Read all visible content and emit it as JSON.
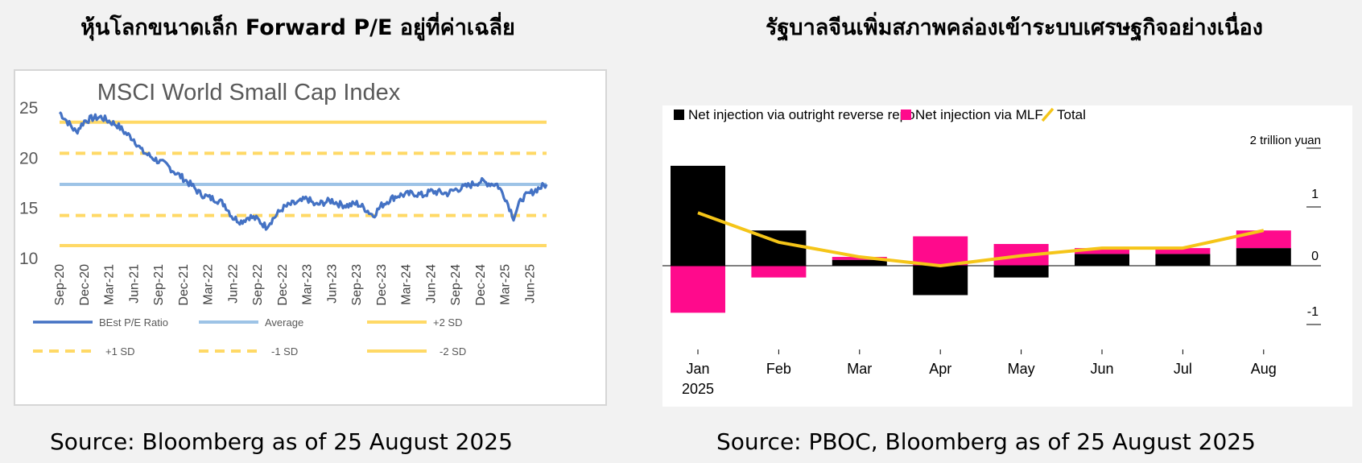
{
  "left": {
    "heading": "หุ้นโลกขนาดเล็ก Forward P/E อยู่ที่ค่าเฉลี่ย",
    "source": "Source: Bloomberg as of 25 August 2025"
  },
  "right": {
    "heading": "รัฐบาลจีนเพิ่มสภาพคล่องเข้าระบบเศรษฐกิจอย่างเนื่อง",
    "source": "Source: PBOC, Bloomberg as of 25 August 2025"
  },
  "chart_data": [
    {
      "type": "line",
      "title": "MSCI World Small Cap Index",
      "ylim": [
        10,
        25
      ],
      "yticks": [
        10,
        15,
        20,
        25
      ],
      "xlim": [
        "Sep-20",
        "Aug-25"
      ],
      "xticks": [
        "Sep-20",
        "Dec-20",
        "Mar-21",
        "Jun-21",
        "Sep-21",
        "Dec-21",
        "Mar-22",
        "Jun-22",
        "Sep-22",
        "Dec-22",
        "Mar-23",
        "Jun-23",
        "Sep-23",
        "Dec-23",
        "Mar-24",
        "Jun-24",
        "Sep-24",
        "Dec-24",
        "Mar-25",
        "Jun-25"
      ],
      "grid": false,
      "legend_position": "bottom",
      "series": [
        {
          "name": "BEst P/E Ratio",
          "color": "#4472c4",
          "style": "solid",
          "x": [
            "Sep-20",
            "Oct-20",
            "Nov-20",
            "Dec-20",
            "Jan-21",
            "Feb-21",
            "Mar-21",
            "Apr-21",
            "May-21",
            "Jun-21",
            "Jul-21",
            "Aug-21",
            "Sep-21",
            "Oct-21",
            "Nov-21",
            "Dec-21",
            "Jan-22",
            "Feb-22",
            "Mar-22",
            "Apr-22",
            "May-22",
            "Jun-22",
            "Jul-22",
            "Aug-22",
            "Sep-22",
            "Oct-22",
            "Nov-22",
            "Dec-22",
            "Jan-23",
            "Feb-23",
            "Mar-23",
            "Apr-23",
            "May-23",
            "Jun-23",
            "Jul-23",
            "Aug-23",
            "Sep-23",
            "Oct-23",
            "Nov-23",
            "Dec-23",
            "Jan-24",
            "Feb-24",
            "Mar-24",
            "Apr-24",
            "May-24",
            "Jun-24",
            "Jul-24",
            "Aug-24",
            "Sep-24",
            "Oct-24",
            "Nov-24",
            "Dec-24",
            "Jan-25",
            "Feb-25",
            "Mar-25",
            "Apr-25",
            "May-25",
            "Jun-25",
            "Jul-25",
            "Aug-25"
          ],
          "values": [
            24.5,
            23.5,
            22.5,
            23.6,
            23.9,
            24.0,
            23.6,
            23.2,
            22.4,
            21.8,
            20.6,
            20.1,
            19.6,
            19.2,
            18.5,
            17.9,
            17.2,
            16.4,
            16.0,
            15.8,
            15.3,
            14.0,
            13.6,
            14.1,
            13.8,
            13.1,
            14.0,
            14.9,
            15.3,
            15.5,
            15.9,
            15.2,
            15.5,
            15.7,
            15.3,
            15.2,
            15.4,
            14.9,
            14.2,
            15.2,
            15.8,
            16.2,
            16.3,
            16.4,
            16.2,
            16.6,
            16.5,
            16.4,
            16.8,
            17.0,
            17.3,
            17.6,
            17.4,
            17.3,
            16.0,
            14.0,
            15.9,
            16.4,
            16.9,
            17.3
          ]
        },
        {
          "name": "Average",
          "color": "#9dc3e6",
          "style": "solid",
          "value": 17.3
        },
        {
          "name": "+2 SD",
          "color": "#ffd966",
          "style": "solid",
          "value": 23.5
        },
        {
          "name": "+1 SD",
          "color": "#ffd966",
          "style": "dashed",
          "value": 20.4
        },
        {
          "name": "-1 SD",
          "color": "#ffd966",
          "style": "dashed",
          "value": 14.2
        },
        {
          "name": "-2 SD",
          "color": "#ffd966",
          "style": "solid",
          "value": 11.2
        }
      ]
    },
    {
      "type": "bar",
      "title": "",
      "ylabel": "2 trillion yuan",
      "ylim": [
        -1.2,
        2.0
      ],
      "yticks": [
        -1,
        0,
        1
      ],
      "categories": [
        "Jan 2025",
        "Feb",
        "Mar",
        "Apr",
        "May",
        "Jun",
        "Jul",
        "Aug"
      ],
      "category_lines": [
        [
          "Jan",
          "2025"
        ],
        [
          "Feb"
        ],
        [
          "Mar"
        ],
        [
          "Apr"
        ],
        [
          "May"
        ],
        [
          "Jun"
        ],
        [
          "Jul"
        ],
        [
          "Aug"
        ]
      ],
      "stacked": true,
      "legend_position": "top",
      "series": [
        {
          "name": "Net injection via outright reverse repo",
          "color": "#000000",
          "type": "bar",
          "values": [
            1.7,
            0.6,
            0.1,
            -0.5,
            -0.2,
            0.2,
            0.2,
            0.3
          ]
        },
        {
          "name": "Net injection via MLF",
          "color": "#ff0a8c",
          "type": "bar",
          "values": [
            -0.8,
            -0.2,
            0.05,
            0.5,
            0.37,
            0.1,
            0.1,
            0.3
          ]
        },
        {
          "name": "Total",
          "color": "#f5c518",
          "type": "line",
          "values": [
            0.9,
            0.4,
            0.15,
            0.0,
            0.17,
            0.3,
            0.3,
            0.6
          ]
        }
      ]
    }
  ]
}
